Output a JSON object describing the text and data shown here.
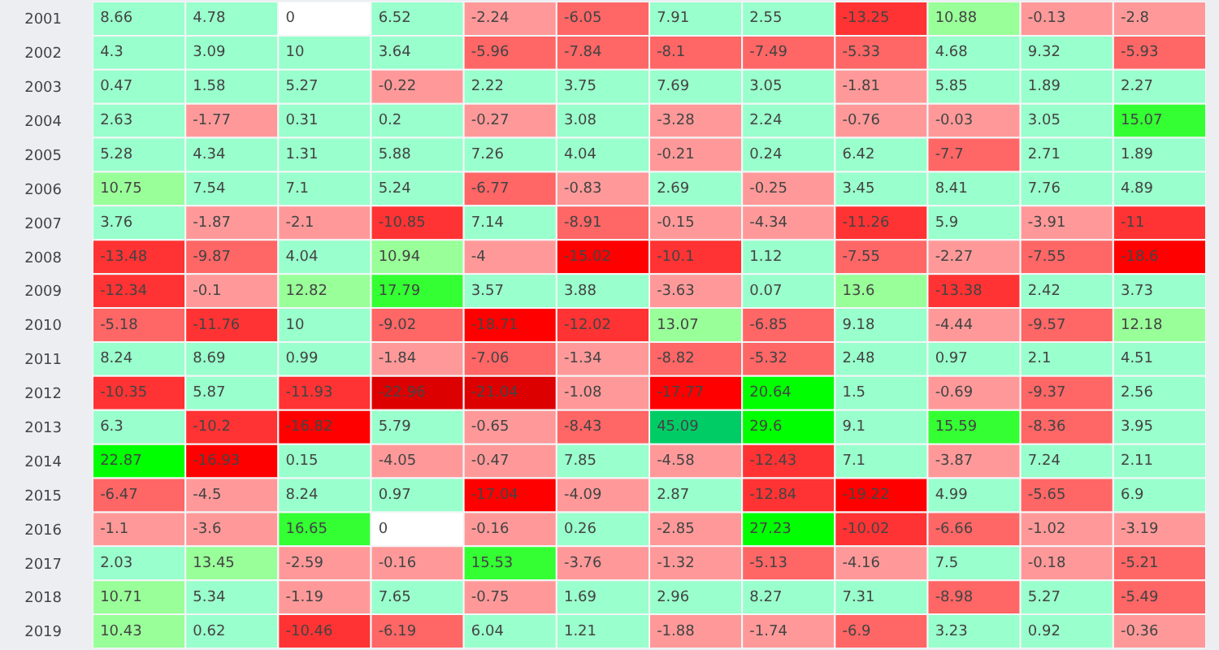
{
  "chart_data": {
    "type": "heatmap",
    "categories": [
      null,
      null,
      null,
      null,
      null,
      null,
      null,
      null,
      null,
      null,
      null,
      null
    ],
    "y_categories": [
      "2001",
      "2002",
      "2003",
      "2004",
      "2005",
      "2006",
      "2007",
      "2008",
      "2009",
      "2010",
      "2011",
      "2012",
      "2013",
      "2014",
      "2015",
      "2016",
      "2017",
      "2018",
      "2019"
    ],
    "cells": [
      [
        8.66,
        4.78,
        0,
        6.52,
        -2.24,
        -6.05,
        7.91,
        2.55,
        -13.25,
        10.88,
        -0.13,
        -2.8
      ],
      [
        4.3,
        3.09,
        10,
        3.64,
        -5.96,
        -7.84,
        -8.1,
        -7.49,
        -5.33,
        4.68,
        9.32,
        -5.93
      ],
      [
        0.47,
        1.58,
        5.27,
        -0.22,
        2.22,
        3.75,
        7.69,
        3.05,
        -1.81,
        5.85,
        1.89,
        2.27
      ],
      [
        2.63,
        -1.77,
        0.31,
        0.2,
        -0.27,
        3.08,
        -3.28,
        2.24,
        -0.76,
        -0.03,
        3.05,
        15.07
      ],
      [
        5.28,
        4.34,
        1.31,
        5.88,
        7.26,
        4.04,
        -0.21,
        0.24,
        6.42,
        -7.7,
        2.71,
        1.89
      ],
      [
        10.75,
        7.54,
        7.1,
        5.24,
        -6.77,
        -0.83,
        2.69,
        -0.25,
        3.45,
        8.41,
        7.76,
        4.89
      ],
      [
        3.76,
        -1.87,
        -2.1,
        -10.85,
        7.14,
        -8.91,
        -0.15,
        -4.34,
        -11.26,
        5.9,
        -3.91,
        -11
      ],
      [
        -13.48,
        -9.87,
        4.04,
        10.94,
        -4,
        -15.02,
        -10.1,
        1.12,
        -7.55,
        -2.27,
        -7.55,
        -18.6
      ],
      [
        -12.34,
        -0.1,
        12.82,
        17.79,
        3.57,
        3.88,
        -3.63,
        0.07,
        13.6,
        -13.38,
        2.42,
        3.73
      ],
      [
        -5.18,
        -11.76,
        10,
        -9.02,
        -18.71,
        -12.02,
        13.07,
        -6.85,
        9.18,
        -4.44,
        -9.57,
        12.18
      ],
      [
        8.24,
        8.69,
        0.99,
        -1.84,
        -7.06,
        -1.34,
        -8.82,
        -5.32,
        2.48,
        0.97,
        2.1,
        4.51
      ],
      [
        -10.35,
        5.87,
        -11.93,
        -22.96,
        -21.04,
        -1.08,
        -17.77,
        20.64,
        1.5,
        -0.69,
        -9.37,
        2.56
      ],
      [
        6.3,
        -10.2,
        -16.82,
        5.79,
        -0.65,
        -8.43,
        45.09,
        29.6,
        9.1,
        15.59,
        -8.36,
        3.95
      ],
      [
        22.87,
        -16.93,
        0.15,
        -4.05,
        -0.47,
        7.85,
        -4.58,
        -12.43,
        7.1,
        -3.87,
        7.24,
        2.11
      ],
      [
        -6.47,
        -4.5,
        8.24,
        0.97,
        -17.04,
        -4.09,
        2.87,
        -12.84,
        -19.22,
        4.99,
        -5.65,
        6.9
      ],
      [
        -1.1,
        -3.6,
        16.65,
        0,
        -0.16,
        0.26,
        -2.85,
        27.23,
        -10.02,
        -6.66,
        -1.02,
        -3.19
      ],
      [
        2.03,
        13.45,
        -2.59,
        -0.16,
        15.53,
        -3.76,
        -1.32,
        -5.13,
        -4.16,
        7.5,
        -0.18,
        -5.21
      ],
      [
        10.71,
        5.34,
        -1.19,
        7.65,
        -0.75,
        1.69,
        2.96,
        8.27,
        7.31,
        -8.98,
        5.27,
        -5.49
      ],
      [
        10.43,
        0.62,
        -10.46,
        -6.19,
        6.04,
        1.21,
        -1.88,
        -1.74,
        -6.9,
        3.23,
        0.92,
        -0.36
      ]
    ],
    "colors": [
      [
        "#99ffcc",
        "#99ffcc",
        "#ffffff",
        "#99ffcc",
        "#ff9999",
        "#ff6666",
        "#99ffcc",
        "#99ffcc",
        "#ff3333",
        "#99ff99",
        "#ff9999",
        "#ff9999"
      ],
      [
        "#99ffcc",
        "#99ffcc",
        "#99ffcc",
        "#99ffcc",
        "#ff6666",
        "#ff6666",
        "#ff6666",
        "#ff6666",
        "#ff6666",
        "#99ffcc",
        "#99ffcc",
        "#ff6666"
      ],
      [
        "#99ffcc",
        "#99ffcc",
        "#99ffcc",
        "#ff9999",
        "#99ffcc",
        "#99ffcc",
        "#99ffcc",
        "#99ffcc",
        "#ff9999",
        "#99ffcc",
        "#99ffcc",
        "#99ffcc"
      ],
      [
        "#99ffcc",
        "#ff9999",
        "#99ffcc",
        "#99ffcc",
        "#ff9999",
        "#99ffcc",
        "#ff9999",
        "#99ffcc",
        "#ff9999",
        "#ff9999",
        "#99ffcc",
        "#33ff33"
      ],
      [
        "#99ffcc",
        "#99ffcc",
        "#99ffcc",
        "#99ffcc",
        "#99ffcc",
        "#99ffcc",
        "#ff9999",
        "#99ffcc",
        "#99ffcc",
        "#ff6666",
        "#99ffcc",
        "#99ffcc"
      ],
      [
        "#99ff99",
        "#99ffcc",
        "#99ffcc",
        "#99ffcc",
        "#ff6666",
        "#ff9999",
        "#99ffcc",
        "#ff9999",
        "#99ffcc",
        "#99ffcc",
        "#99ffcc",
        "#99ffcc"
      ],
      [
        "#99ffcc",
        "#ff9999",
        "#ff9999",
        "#ff3333",
        "#99ffcc",
        "#ff6666",
        "#ff9999",
        "#ff9999",
        "#ff3333",
        "#99ffcc",
        "#ff9999",
        "#ff3333"
      ],
      [
        "#ff3333",
        "#ff6666",
        "#99ffcc",
        "#99ff99",
        "#ff9999",
        "#ff0000",
        "#ff3333",
        "#99ffcc",
        "#ff6666",
        "#ff9999",
        "#ff6666",
        "#ff0000"
      ],
      [
        "#ff3333",
        "#ff9999",
        "#99ff99",
        "#33ff33",
        "#99ffcc",
        "#99ffcc",
        "#ff9999",
        "#99ffcc",
        "#99ff99",
        "#ff3333",
        "#99ffcc",
        "#99ffcc"
      ],
      [
        "#ff6666",
        "#ff3333",
        "#99ffcc",
        "#ff6666",
        "#ff0000",
        "#ff3333",
        "#99ff99",
        "#ff6666",
        "#99ffcc",
        "#ff9999",
        "#ff6666",
        "#99ff99"
      ],
      [
        "#99ffcc",
        "#99ffcc",
        "#99ffcc",
        "#ff9999",
        "#ff6666",
        "#ff9999",
        "#ff6666",
        "#ff6666",
        "#99ffcc",
        "#99ffcc",
        "#99ffcc",
        "#99ffcc"
      ],
      [
        "#ff3333",
        "#99ffcc",
        "#ff3333",
        "#dd0000",
        "#dd0000",
        "#ff9999",
        "#ff0000",
        "#00ff00",
        "#99ffcc",
        "#ff9999",
        "#ff6666",
        "#99ffcc"
      ],
      [
        "#99ffcc",
        "#ff3333",
        "#ff0000",
        "#99ffcc",
        "#ff9999",
        "#ff6666",
        "#00cc66",
        "#00ff00",
        "#99ffcc",
        "#33ff33",
        "#ff6666",
        "#99ffcc"
      ],
      [
        "#00ff00",
        "#ff0000",
        "#99ffcc",
        "#ff9999",
        "#ff9999",
        "#99ffcc",
        "#ff9999",
        "#ff3333",
        "#99ffcc",
        "#ff9999",
        "#99ffcc",
        "#99ffcc"
      ],
      [
        "#ff6666",
        "#ff9999",
        "#99ffcc",
        "#99ffcc",
        "#ff0000",
        "#ff9999",
        "#99ffcc",
        "#ff3333",
        "#ff0000",
        "#99ffcc",
        "#ff6666",
        "#99ffcc"
      ],
      [
        "#ff9999",
        "#ff9999",
        "#33ff33",
        "#ffffff",
        "#ff9999",
        "#99ffcc",
        "#ff9999",
        "#00ff00",
        "#ff3333",
        "#ff6666",
        "#ff9999",
        "#ff9999"
      ],
      [
        "#99ffcc",
        "#99ff99",
        "#ff9999",
        "#ff9999",
        "#33ff33",
        "#ff9999",
        "#ff9999",
        "#ff6666",
        "#ff9999",
        "#99ffcc",
        "#ff9999",
        "#ff6666"
      ],
      [
        "#99ff99",
        "#99ffcc",
        "#ff9999",
        "#99ffcc",
        "#ff9999",
        "#99ffcc",
        "#99ffcc",
        "#99ffcc",
        "#99ffcc",
        "#ff6666",
        "#99ffcc",
        "#ff6666"
      ],
      [
        "#99ff99",
        "#99ffcc",
        "#ff3333",
        "#ff6666",
        "#99ffcc",
        "#99ffcc",
        "#ff9999",
        "#ff9999",
        "#ff6666",
        "#99ffcc",
        "#99ffcc",
        "#ff9999"
      ]
    ],
    "data_labels": true
  }
}
